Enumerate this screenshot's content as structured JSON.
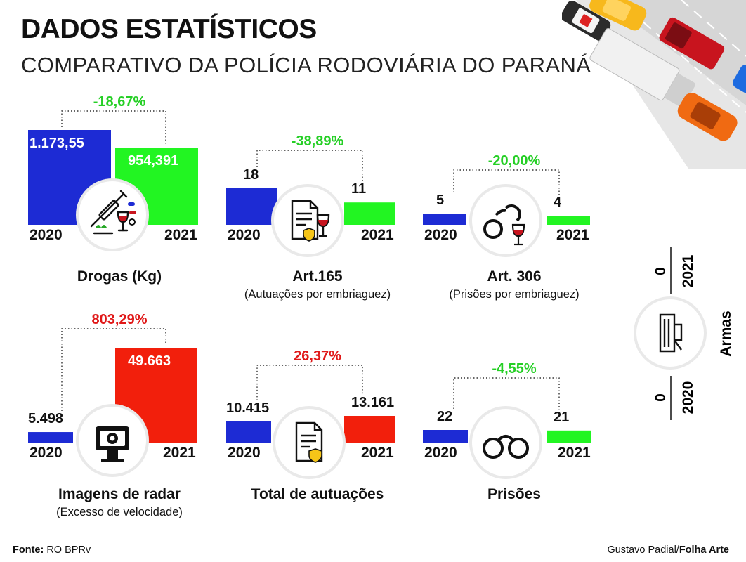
{
  "header": {
    "title": "DADOS ESTATÍSTICOS",
    "subtitle": "COMPARATIVO DA POLÍCIA RODOVIÁRIA DO PARANÁ"
  },
  "colors": {
    "blue": "#1d2bd4",
    "green": "#22f522",
    "red": "#f21f0c",
    "pos": "#e01818",
    "neg": "#25cf25"
  },
  "chart_data": [
    {
      "type": "bar",
      "title": "Drogas (Kg)",
      "note": "",
      "categories": [
        "2020",
        "2021"
      ],
      "values": [
        1173.55,
        954.391
      ],
      "value_labels": [
        "1.173,55",
        "954,391"
      ],
      "change_label": "-18,67%",
      "bar_colors": [
        "blue",
        "green"
      ],
      "icon": "drugs-icon"
    },
    {
      "type": "bar",
      "title": "Art.165",
      "note": "(Autuações por embriaguez)",
      "categories": [
        "2020",
        "2021"
      ],
      "values": [
        18,
        11
      ],
      "value_labels": [
        "18",
        "11"
      ],
      "change_label": "-38,89%",
      "bar_colors": [
        "blue",
        "green"
      ],
      "icon": "document-wine-icon"
    },
    {
      "type": "bar",
      "title": "Art. 306",
      "note": "(Prisões por embriaguez)",
      "categories": [
        "2020",
        "2021"
      ],
      "values": [
        5,
        4
      ],
      "value_labels": [
        "5",
        "4"
      ],
      "change_label": "-20,00%",
      "bar_colors": [
        "blue",
        "green"
      ],
      "icon": "handcuffs-wine-icon"
    },
    {
      "type": "bar",
      "title": "Imagens de radar",
      "note": "(Excesso de velocidade)",
      "categories": [
        "2020",
        "2021"
      ],
      "values": [
        5498,
        49663
      ],
      "value_labels": [
        "5.498",
        "49.663"
      ],
      "change_label": "803,29%",
      "bar_colors": [
        "blue",
        "red"
      ],
      "icon": "speed-camera-icon"
    },
    {
      "type": "bar",
      "title": "Total de autuações",
      "note": "",
      "categories": [
        "2020",
        "2021"
      ],
      "values": [
        10415,
        13161
      ],
      "value_labels": [
        "10.415",
        "13.161"
      ],
      "change_label": "26,37%",
      "bar_colors": [
        "blue",
        "red"
      ],
      "icon": "document-badge-icon"
    },
    {
      "type": "bar",
      "title": "Prisões",
      "note": "",
      "categories": [
        "2020",
        "2021"
      ],
      "values": [
        22,
        21
      ],
      "value_labels": [
        "22",
        "21"
      ],
      "change_label": "-4,55%",
      "bar_colors": [
        "blue",
        "green"
      ],
      "icon": "handcuffs-icon"
    },
    {
      "type": "bar",
      "title": "Armas",
      "categories": [
        "2020",
        "2021"
      ],
      "values": [
        0,
        0
      ],
      "value_labels": [
        "0",
        "0"
      ],
      "icon": "pistol-icon"
    }
  ],
  "footer": {
    "source_label": "Fonte:",
    "source": "RO BPRv",
    "credit_author": "Gustavo Padial/",
    "credit_org": "Folha Arte"
  }
}
